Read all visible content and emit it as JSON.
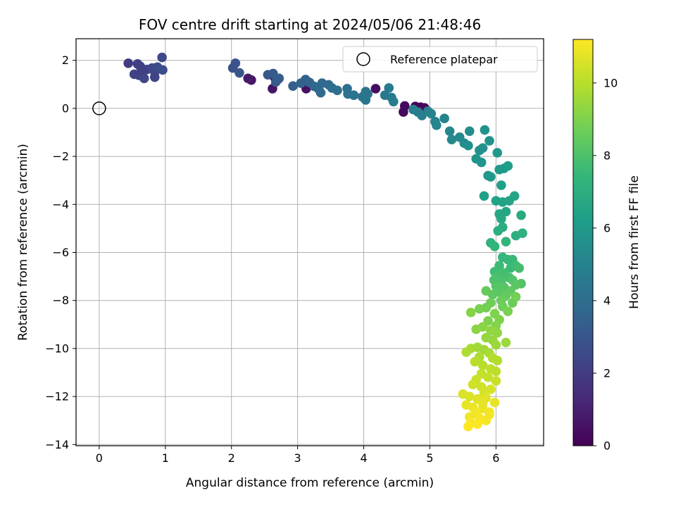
{
  "chart_data": {
    "type": "scatter",
    "title": "FOV centre drift starting at 2024/05/06 21:48:46",
    "xlabel": "Angular distance from reference (arcmin)",
    "ylabel": "Rotation from reference (arcmin)",
    "xlim": [
      -0.35,
      6.72
    ],
    "ylim": [
      -14.05,
      2.9
    ],
    "xticks": [
      0,
      1,
      2,
      3,
      4,
      5,
      6
    ],
    "yticks": [
      2,
      0,
      -2,
      -4,
      -6,
      -8,
      -10,
      -12,
      -14
    ],
    "grid": true,
    "legend": {
      "placement": "top-right",
      "entries": [
        "Reference platepar"
      ]
    },
    "reference_point": {
      "x": 0,
      "y": 0
    },
    "colorbar": {
      "label": "Hours from first FF file",
      "range": [
        0,
        11.2
      ],
      "ticks": [
        0,
        2,
        4,
        6,
        8,
        10
      ],
      "colormap": "viridis"
    },
    "colormap_stops": [
      "#440154",
      "#482878",
      "#3e4989",
      "#31688e",
      "#26828e",
      "#1f9e89",
      "#35b779",
      "#6ece58",
      "#b5de2b",
      "#fde725"
    ],
    "points": [
      {
        "x": 4.78,
        "y": 0.08,
        "t": 0.1
      },
      {
        "x": 4.86,
        "y": 0.05,
        "t": 0.2
      },
      {
        "x": 4.92,
        "y": 0.02,
        "t": 0.2
      },
      {
        "x": 4.62,
        "y": 0.1,
        "t": 0.3
      },
      {
        "x": 4.6,
        "y": -0.15,
        "t": 0.3
      },
      {
        "x": 4.18,
        "y": 0.82,
        "t": 0.4
      },
      {
        "x": 3.13,
        "y": 0.82,
        "t": 0.5
      },
      {
        "x": 2.62,
        "y": 0.82,
        "t": 0.6
      },
      {
        "x": 2.3,
        "y": 1.18,
        "t": 0.7
      },
      {
        "x": 2.25,
        "y": 1.25,
        "t": 0.8
      },
      {
        "x": 2.65,
        "y": 1.3,
        "t": 1.0
      },
      {
        "x": 2.7,
        "y": 1.2,
        "t": 1.2
      },
      {
        "x": 0.44,
        "y": 1.88,
        "t": 2.0
      },
      {
        "x": 0.58,
        "y": 1.85,
        "t": 2.2
      },
      {
        "x": 0.62,
        "y": 1.75,
        "t": 2.1
      },
      {
        "x": 0.53,
        "y": 1.42,
        "t": 2.3
      },
      {
        "x": 0.6,
        "y": 1.38,
        "t": 2.2
      },
      {
        "x": 0.68,
        "y": 1.25,
        "t": 2.4
      },
      {
        "x": 0.72,
        "y": 1.62,
        "t": 2.3
      },
      {
        "x": 0.8,
        "y": 1.68,
        "t": 2.5
      },
      {
        "x": 0.84,
        "y": 1.52,
        "t": 2.4
      },
      {
        "x": 0.84,
        "y": 1.3,
        "t": 2.3
      },
      {
        "x": 0.88,
        "y": 1.72,
        "t": 2.6
      },
      {
        "x": 0.95,
        "y": 2.12,
        "t": 2.5
      },
      {
        "x": 0.96,
        "y": 1.6,
        "t": 2.7
      },
      {
        "x": 0.64,
        "y": 1.6,
        "t": 2.2
      },
      {
        "x": 2.02,
        "y": 1.68,
        "t": 2.8
      },
      {
        "x": 2.06,
        "y": 1.88,
        "t": 2.9
      },
      {
        "x": 2.12,
        "y": 1.48,
        "t": 3.0
      },
      {
        "x": 2.55,
        "y": 1.4,
        "t": 3.1
      },
      {
        "x": 2.63,
        "y": 1.45,
        "t": 3.2
      },
      {
        "x": 2.67,
        "y": 1.1,
        "t": 3.2
      },
      {
        "x": 2.72,
        "y": 1.25,
        "t": 3.3
      },
      {
        "x": 2.93,
        "y": 0.93,
        "t": 3.4
      },
      {
        "x": 3.05,
        "y": 1.05,
        "t": 3.5
      },
      {
        "x": 3.12,
        "y": 1.2,
        "t": 3.5
      },
      {
        "x": 3.18,
        "y": 1.08,
        "t": 3.6
      },
      {
        "x": 3.25,
        "y": 0.92,
        "t": 3.7
      },
      {
        "x": 3.32,
        "y": 0.8,
        "t": 3.8
      },
      {
        "x": 3.35,
        "y": 0.65,
        "t": 3.9
      },
      {
        "x": 3.37,
        "y": 1.05,
        "t": 3.8
      },
      {
        "x": 3.47,
        "y": 0.98,
        "t": 3.9
      },
      {
        "x": 3.52,
        "y": 0.85,
        "t": 4.0
      },
      {
        "x": 3.6,
        "y": 0.75,
        "t": 4.0
      },
      {
        "x": 3.75,
        "y": 0.82,
        "t": 4.1
      },
      {
        "x": 3.76,
        "y": 0.6,
        "t": 4.2
      },
      {
        "x": 3.85,
        "y": 0.55,
        "t": 4.2
      },
      {
        "x": 3.98,
        "y": 0.48,
        "t": 4.3
      },
      {
        "x": 4.03,
        "y": 0.35,
        "t": 4.3
      },
      {
        "x": 4.06,
        "y": 0.6,
        "t": 4.4
      },
      {
        "x": 4.03,
        "y": 0.7,
        "t": 4.4
      },
      {
        "x": 4.32,
        "y": 0.55,
        "t": 4.5
      },
      {
        "x": 4.38,
        "y": 0.85,
        "t": 4.6
      },
      {
        "x": 4.42,
        "y": 0.45,
        "t": 4.6
      },
      {
        "x": 4.45,
        "y": 0.28,
        "t": 4.7
      },
      {
        "x": 4.75,
        "y": -0.05,
        "t": 4.8
      },
      {
        "x": 4.82,
        "y": -0.15,
        "t": 4.8
      },
      {
        "x": 4.88,
        "y": -0.3,
        "t": 4.9
      },
      {
        "x": 4.97,
        "y": -0.12,
        "t": 4.9
      },
      {
        "x": 5.02,
        "y": -0.22,
        "t": 5.0
      },
      {
        "x": 5.08,
        "y": -0.55,
        "t": 5.0
      },
      {
        "x": 5.1,
        "y": -0.7,
        "t": 5.1
      },
      {
        "x": 5.22,
        "y": -0.42,
        "t": 5.1
      },
      {
        "x": 5.3,
        "y": -0.95,
        "t": 5.2
      },
      {
        "x": 5.33,
        "y": -1.3,
        "t": 5.3
      },
      {
        "x": 5.45,
        "y": -1.2,
        "t": 5.3
      },
      {
        "x": 5.52,
        "y": -1.45,
        "t": 5.4
      },
      {
        "x": 5.58,
        "y": -1.55,
        "t": 5.5
      },
      {
        "x": 5.6,
        "y": -0.95,
        "t": 5.4
      },
      {
        "x": 5.75,
        "y": -1.75,
        "t": 5.6
      },
      {
        "x": 5.8,
        "y": -1.65,
        "t": 5.6
      },
      {
        "x": 5.83,
        "y": -0.9,
        "t": 5.7
      },
      {
        "x": 5.9,
        "y": -1.35,
        "t": 5.7
      },
      {
        "x": 5.7,
        "y": -2.1,
        "t": 5.8
      },
      {
        "x": 5.78,
        "y": -2.25,
        "t": 5.8
      },
      {
        "x": 5.88,
        "y": -2.8,
        "t": 5.9
      },
      {
        "x": 5.92,
        "y": -2.85,
        "t": 6.0
      },
      {
        "x": 6.02,
        "y": -1.85,
        "t": 6.0
      },
      {
        "x": 6.05,
        "y": -2.55,
        "t": 6.1
      },
      {
        "x": 6.12,
        "y": -2.5,
        "t": 6.1
      },
      {
        "x": 6.18,
        "y": -2.4,
        "t": 6.2
      },
      {
        "x": 5.82,
        "y": -3.65,
        "t": 6.3
      },
      {
        "x": 6.08,
        "y": -3.2,
        "t": 6.3
      },
      {
        "x": 6.0,
        "y": -3.85,
        "t": 6.4
      },
      {
        "x": 6.1,
        "y": -3.9,
        "t": 6.4
      },
      {
        "x": 6.2,
        "y": -3.85,
        "t": 6.5
      },
      {
        "x": 6.28,
        "y": -3.65,
        "t": 6.5
      },
      {
        "x": 6.05,
        "y": -4.4,
        "t": 6.6
      },
      {
        "x": 6.15,
        "y": -4.3,
        "t": 6.6
      },
      {
        "x": 6.08,
        "y": -4.6,
        "t": 6.7
      },
      {
        "x": 6.38,
        "y": -4.45,
        "t": 6.8
      },
      {
        "x": 6.1,
        "y": -4.95,
        "t": 6.9
      },
      {
        "x": 6.03,
        "y": -5.1,
        "t": 7.0
      },
      {
        "x": 6.3,
        "y": -5.3,
        "t": 7.0
      },
      {
        "x": 6.4,
        "y": -5.2,
        "t": 7.1
      },
      {
        "x": 5.92,
        "y": -5.6,
        "t": 7.2
      },
      {
        "x": 5.98,
        "y": -5.75,
        "t": 7.3
      },
      {
        "x": 6.15,
        "y": -5.55,
        "t": 7.3
      },
      {
        "x": 6.1,
        "y": -6.2,
        "t": 7.4
      },
      {
        "x": 6.18,
        "y": -6.3,
        "t": 7.5
      },
      {
        "x": 6.25,
        "y": -6.3,
        "t": 7.5
      },
      {
        "x": 6.05,
        "y": -6.55,
        "t": 7.6
      },
      {
        "x": 6.22,
        "y": -6.65,
        "t": 7.6
      },
      {
        "x": 6.3,
        "y": -6.55,
        "t": 7.7
      },
      {
        "x": 5.98,
        "y": -6.8,
        "t": 7.7
      },
      {
        "x": 6.12,
        "y": -6.85,
        "t": 7.8
      },
      {
        "x": 6.35,
        "y": -6.65,
        "t": 7.8
      },
      {
        "x": 6.02,
        "y": -7.0,
        "t": 7.9
      },
      {
        "x": 6.2,
        "y": -7.05,
        "t": 7.9
      },
      {
        "x": 5.97,
        "y": -7.15,
        "t": 8.0
      },
      {
        "x": 6.08,
        "y": -7.2,
        "t": 8.0
      },
      {
        "x": 6.25,
        "y": -7.15,
        "t": 8.1
      },
      {
        "x": 6.38,
        "y": -7.3,
        "t": 8.1
      },
      {
        "x": 6.0,
        "y": -7.4,
        "t": 8.2
      },
      {
        "x": 6.12,
        "y": -7.45,
        "t": 8.2
      },
      {
        "x": 6.3,
        "y": -7.35,
        "t": 8.3
      },
      {
        "x": 6.05,
        "y": -7.65,
        "t": 8.3
      },
      {
        "x": 6.22,
        "y": -7.6,
        "t": 8.4
      },
      {
        "x": 5.95,
        "y": -7.75,
        "t": 8.4
      },
      {
        "x": 6.15,
        "y": -7.8,
        "t": 8.5
      },
      {
        "x": 5.85,
        "y": -7.6,
        "t": 8.5
      },
      {
        "x": 6.08,
        "y": -8.0,
        "t": 8.6
      },
      {
        "x": 6.25,
        "y": -8.1,
        "t": 8.6
      },
      {
        "x": 5.92,
        "y": -8.1,
        "t": 8.7
      },
      {
        "x": 6.1,
        "y": -8.25,
        "t": 8.7
      },
      {
        "x": 6.3,
        "y": -7.85,
        "t": 8.8
      },
      {
        "x": 5.85,
        "y": -8.3,
        "t": 8.8
      },
      {
        "x": 6.18,
        "y": -8.45,
        "t": 8.9
      },
      {
        "x": 5.75,
        "y": -8.35,
        "t": 8.9
      },
      {
        "x": 5.98,
        "y": -8.55,
        "t": 9.0
      },
      {
        "x": 6.05,
        "y": -8.8,
        "t": 9.0
      },
      {
        "x": 5.88,
        "y": -8.85,
        "t": 9.0
      },
      {
        "x": 6.0,
        "y": -9.05,
        "t": 9.1
      },
      {
        "x": 5.62,
        "y": -8.5,
        "t": 9.1
      },
      {
        "x": 5.7,
        "y": -9.2,
        "t": 9.2
      },
      {
        "x": 5.8,
        "y": -9.1,
        "t": 9.2
      },
      {
        "x": 5.92,
        "y": -9.25,
        "t": 9.3
      },
      {
        "x": 6.02,
        "y": -9.35,
        "t": 9.3
      },
      {
        "x": 5.85,
        "y": -9.55,
        "t": 9.4
      },
      {
        "x": 5.95,
        "y": -9.65,
        "t": 9.4
      },
      {
        "x": 6.0,
        "y": -9.85,
        "t": 9.5
      },
      {
        "x": 6.15,
        "y": -9.75,
        "t": 9.5
      },
      {
        "x": 5.72,
        "y": -9.95,
        "t": 9.6
      },
      {
        "x": 5.82,
        "y": -10.05,
        "t": 9.6
      },
      {
        "x": 5.9,
        "y": -10.2,
        "t": 9.7
      },
      {
        "x": 5.62,
        "y": -10.0,
        "t": 9.7
      },
      {
        "x": 5.55,
        "y": -10.15,
        "t": 9.8
      },
      {
        "x": 5.75,
        "y": -10.35,
        "t": 9.8
      },
      {
        "x": 5.95,
        "y": -10.4,
        "t": 9.9
      },
      {
        "x": 6.02,
        "y": -10.5,
        "t": 9.9
      },
      {
        "x": 5.68,
        "y": -10.55,
        "t": 10.0
      },
      {
        "x": 5.8,
        "y": -10.7,
        "t": 10.0
      },
      {
        "x": 5.92,
        "y": -10.85,
        "t": 10.1
      },
      {
        "x": 6.0,
        "y": -10.95,
        "t": 10.1
      },
      {
        "x": 5.78,
        "y": -11.05,
        "t": 10.2
      },
      {
        "x": 5.88,
        "y": -11.2,
        "t": 10.2
      },
      {
        "x": 6.0,
        "y": -11.35,
        "t": 10.3
      },
      {
        "x": 5.7,
        "y": -11.3,
        "t": 10.3
      },
      {
        "x": 5.65,
        "y": -11.5,
        "t": 10.4
      },
      {
        "x": 5.78,
        "y": -11.6,
        "t": 10.4
      },
      {
        "x": 5.92,
        "y": -11.7,
        "t": 10.5
      },
      {
        "x": 5.82,
        "y": -11.85,
        "t": 10.5
      },
      {
        "x": 5.5,
        "y": -11.9,
        "t": 10.6
      },
      {
        "x": 5.6,
        "y": -12.0,
        "t": 10.6
      },
      {
        "x": 5.72,
        "y": -12.1,
        "t": 10.7
      },
      {
        "x": 5.85,
        "y": -12.05,
        "t": 10.7
      },
      {
        "x": 5.98,
        "y": -12.25,
        "t": 10.8
      },
      {
        "x": 5.55,
        "y": -12.35,
        "t": 10.8
      },
      {
        "x": 5.65,
        "y": -12.45,
        "t": 10.9
      },
      {
        "x": 5.8,
        "y": -12.5,
        "t": 10.9
      },
      {
        "x": 5.9,
        "y": -12.65,
        "t": 11.0
      },
      {
        "x": 5.7,
        "y": -12.7,
        "t": 11.0
      },
      {
        "x": 5.6,
        "y": -12.85,
        "t": 11.0
      },
      {
        "x": 5.75,
        "y": -12.9,
        "t": 11.1
      },
      {
        "x": 5.85,
        "y": -13.0,
        "t": 11.1
      },
      {
        "x": 5.62,
        "y": -13.1,
        "t": 11.1
      },
      {
        "x": 5.72,
        "y": -13.15,
        "t": 11.2
      },
      {
        "x": 5.58,
        "y": -13.25,
        "t": 11.2
      },
      {
        "x": 5.8,
        "y": -12.3,
        "t": 10.8
      },
      {
        "x": 5.9,
        "y": -12.75,
        "t": 11.0
      }
    ]
  }
}
